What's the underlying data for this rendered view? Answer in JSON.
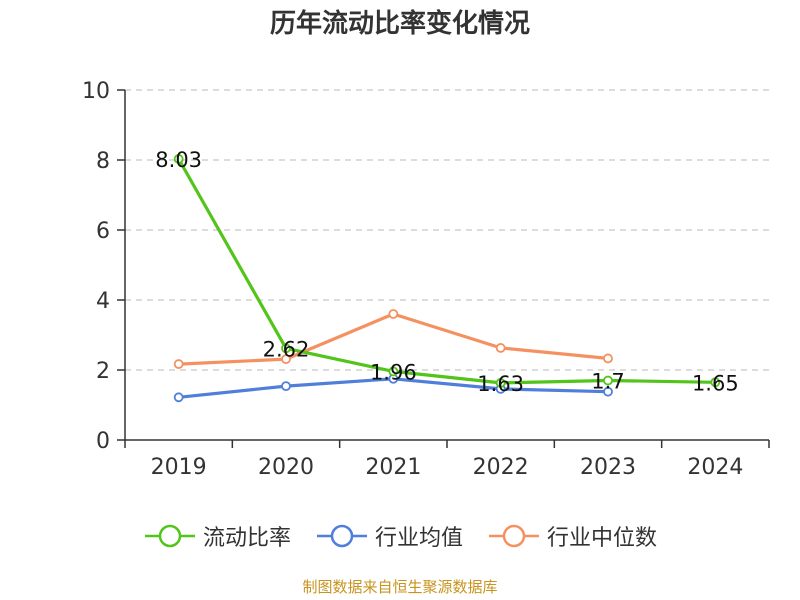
{
  "chart_data": {
    "type": "line",
    "title": "历年流动比率变化情况",
    "categories": [
      "2019",
      "2020",
      "2021",
      "2022",
      "2023",
      "2024"
    ],
    "ylim": [
      0,
      10
    ],
    "y_ticks": [
      "0",
      "2",
      "4",
      "6",
      "8",
      "10"
    ],
    "grid": true,
    "legend_position": "bottom",
    "series": [
      {
        "name": "流动比率",
        "color": "#52c41a",
        "values": [
          8.03,
          2.62,
          1.96,
          1.63,
          1.7,
          1.65
        ],
        "labels": [
          "8.03",
          "2.62",
          "1.96",
          "1.63",
          "1.7",
          "1.65"
        ]
      },
      {
        "name": "行业均值",
        "color": "#4f7fdb",
        "values": [
          1.22,
          1.54,
          1.75,
          1.46,
          1.38,
          null
        ]
      },
      {
        "name": "行业中位数",
        "color": "#f59160",
        "values": [
          2.17,
          2.31,
          3.6,
          2.63,
          2.33,
          null
        ]
      }
    ]
  },
  "source": {
    "text": "制图数据来自恒生聚源数据库",
    "color": "#c8941e"
  }
}
